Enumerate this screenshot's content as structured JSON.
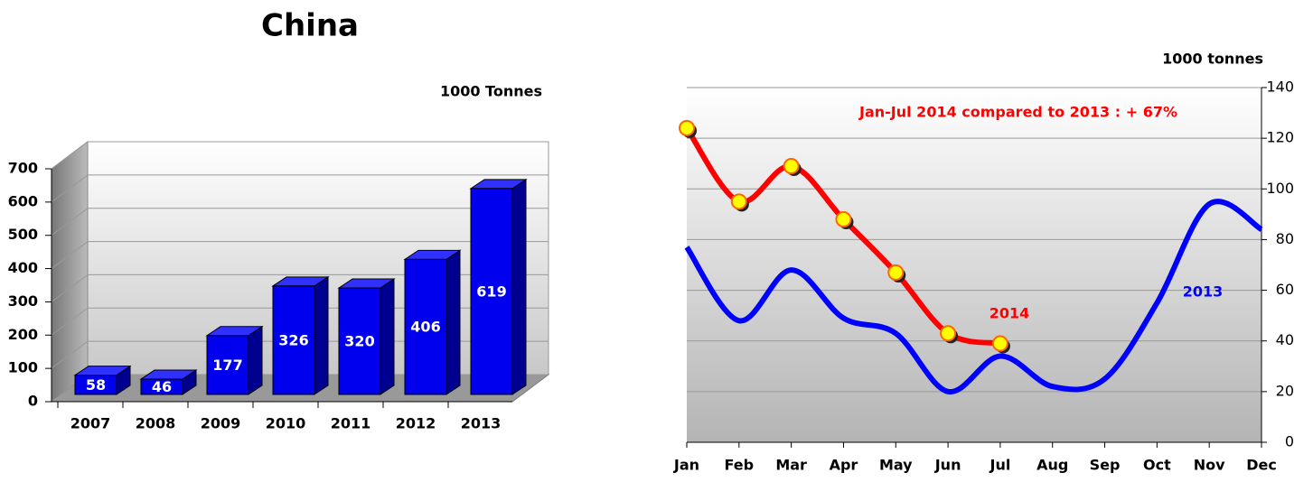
{
  "chart_data": [
    {
      "type": "bar",
      "title": "China",
      "unit": "1000 Tonnes",
      "categories": [
        "2007",
        "2008",
        "2009",
        "2010",
        "2011",
        "2012",
        "2013"
      ],
      "values": [
        58,
        46,
        177,
        326,
        320,
        406,
        619
      ],
      "color": "#0000ee",
      "ylim": [
        0,
        700
      ],
      "yticks": [
        0,
        100,
        200,
        300,
        400,
        500,
        600,
        700
      ],
      "grid": true
    },
    {
      "type": "line",
      "unit": "1000 tonnes",
      "annotation": "Jan-Jul 2014 compared to 2013 : + 67%",
      "categories": [
        "Jan",
        "Feb",
        "Mar",
        "Apr",
        "May",
        "Jun",
        "Jul",
        "Aug",
        "Sep",
        "Oct",
        "Nov",
        "Dec"
      ],
      "series": [
        {
          "name": "2014",
          "color": "#ff0000",
          "values": [
            124,
            95,
            109,
            88,
            67,
            43,
            39,
            null,
            null,
            null,
            null,
            null
          ]
        },
        {
          "name": "2013",
          "color": "#0000ff",
          "values": [
            77,
            48,
            68,
            49,
            43,
            20,
            34,
            22,
            25,
            55,
            94,
            84
          ]
        }
      ],
      "ylim": [
        0,
        140
      ],
      "yticks": [
        0,
        20,
        40,
        60,
        80,
        100,
        120,
        140
      ],
      "grid": true
    }
  ]
}
